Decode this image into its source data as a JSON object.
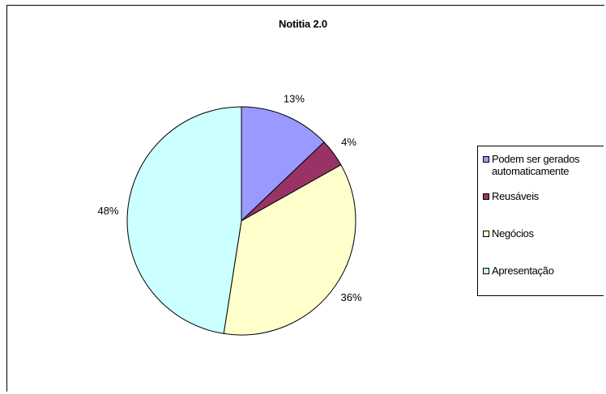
{
  "chart_data": {
    "type": "pie",
    "title": "Notitia 2.0",
    "categories": [
      "Podem ser gerados\nautomaticamente",
      "Reusáveis",
      "Negócios",
      "Apresentação"
    ],
    "values": [
      13,
      4,
      36,
      48
    ],
    "labels": [
      "13%",
      "4%",
      "36%",
      "48%"
    ],
    "colors": [
      "#9999ff",
      "#993366",
      "#ffffcc",
      "#ccffff"
    ],
    "legend": "right"
  }
}
